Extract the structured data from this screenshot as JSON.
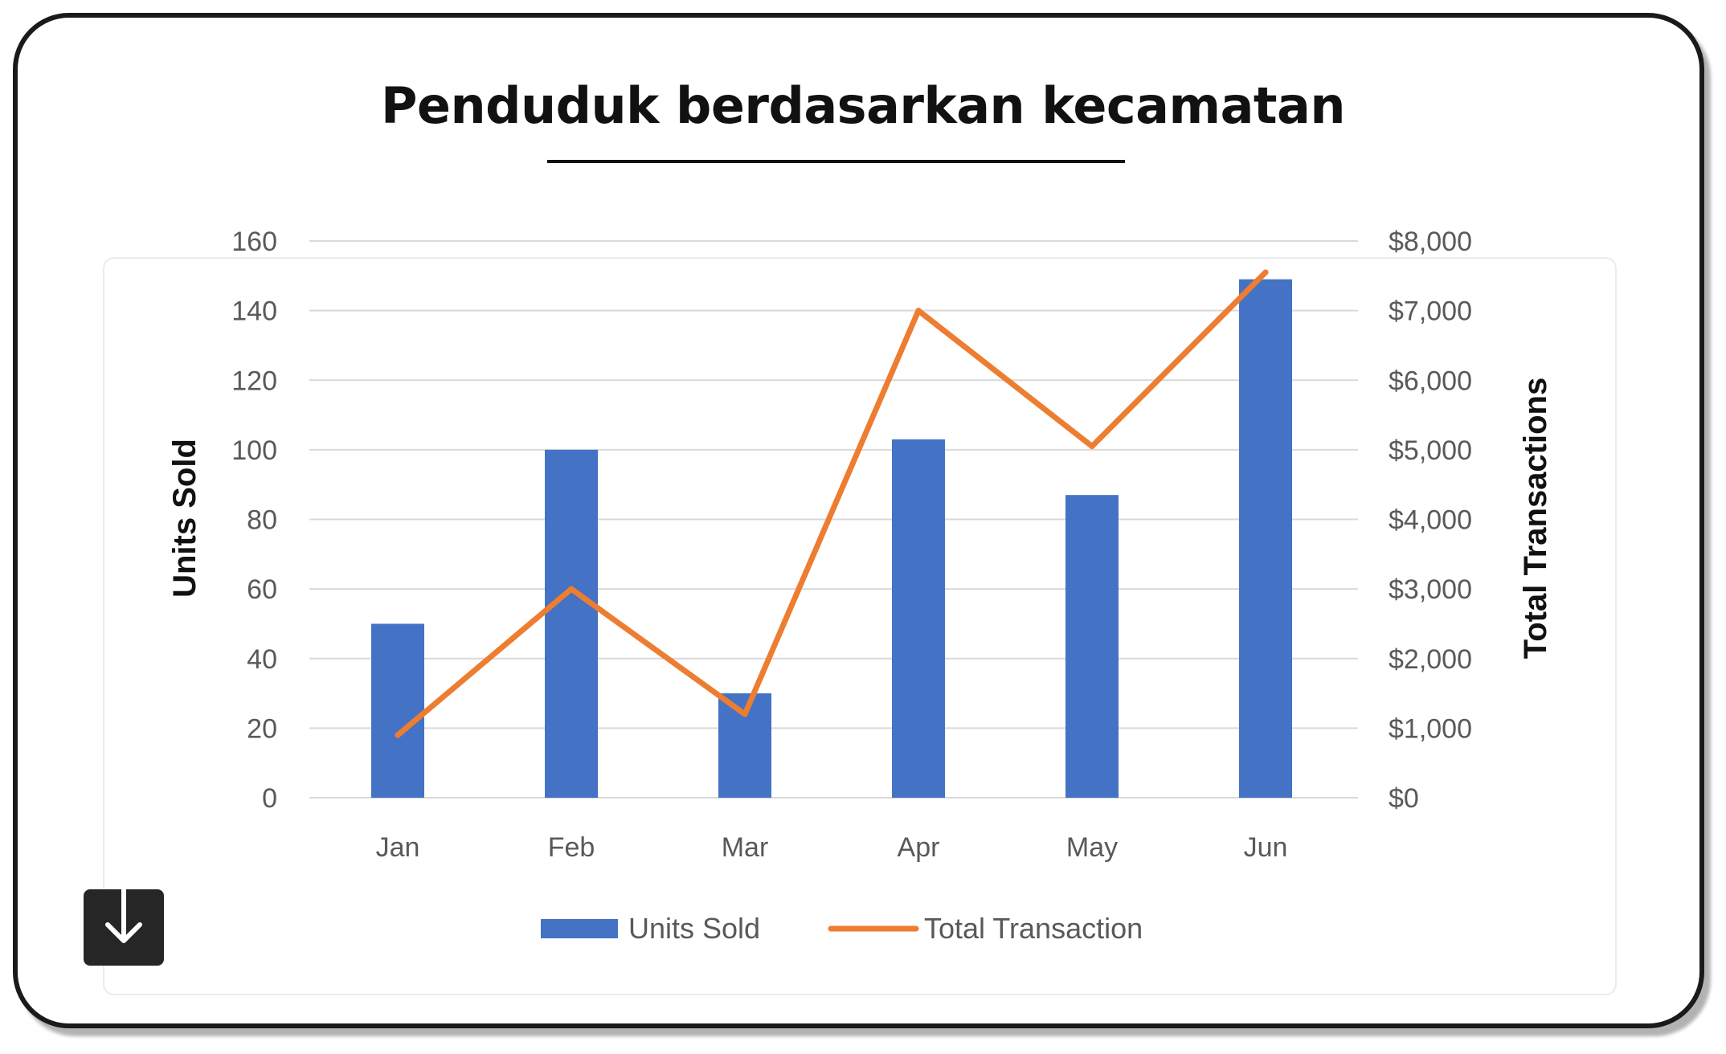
{
  "title": "Penduduk berdasarkan kecamatan",
  "download": {
    "icon": "download-icon"
  },
  "colors": {
    "bars": "#4472c4",
    "line": "#ed7d31",
    "grid": "#d9d9d9",
    "axis_text": "#595959",
    "axis_title": "#111111"
  },
  "chart_data": {
    "type": "bar",
    "categories": [
      "Jan",
      "Feb",
      "Mar",
      "Apr",
      "May",
      "Jun"
    ],
    "series": [
      {
        "name": "Units Sold",
        "type": "bar",
        "axis": "left",
        "values": [
          50,
          100,
          30,
          103,
          87,
          149
        ]
      },
      {
        "name": "Total Transaction",
        "type": "line",
        "axis": "right",
        "values": [
          900,
          3000,
          1200,
          7000,
          5050,
          7550
        ]
      }
    ],
    "y_left": {
      "label": "Units Sold",
      "ylim": [
        0,
        160
      ],
      "ticks": [
        0,
        20,
        40,
        60,
        80,
        100,
        120,
        140,
        160
      ],
      "tick_labels": [
        "0",
        "20",
        "40",
        "60",
        "80",
        "100",
        "120",
        "140",
        "160"
      ]
    },
    "y_right": {
      "label": "Total Transactions",
      "ylim": [
        0,
        8000
      ],
      "ticks": [
        0,
        1000,
        2000,
        3000,
        4000,
        5000,
        6000,
        7000,
        8000
      ],
      "tick_labels": [
        "$0",
        "$1,000",
        "$2,000",
        "$3,000",
        "$4,000",
        "$5,000",
        "$6,000",
        "$7,000",
        "$8,000"
      ]
    },
    "grid": true,
    "legend": {
      "position": "bottom",
      "entries": [
        "Units Sold",
        "Total Transaction"
      ]
    }
  }
}
